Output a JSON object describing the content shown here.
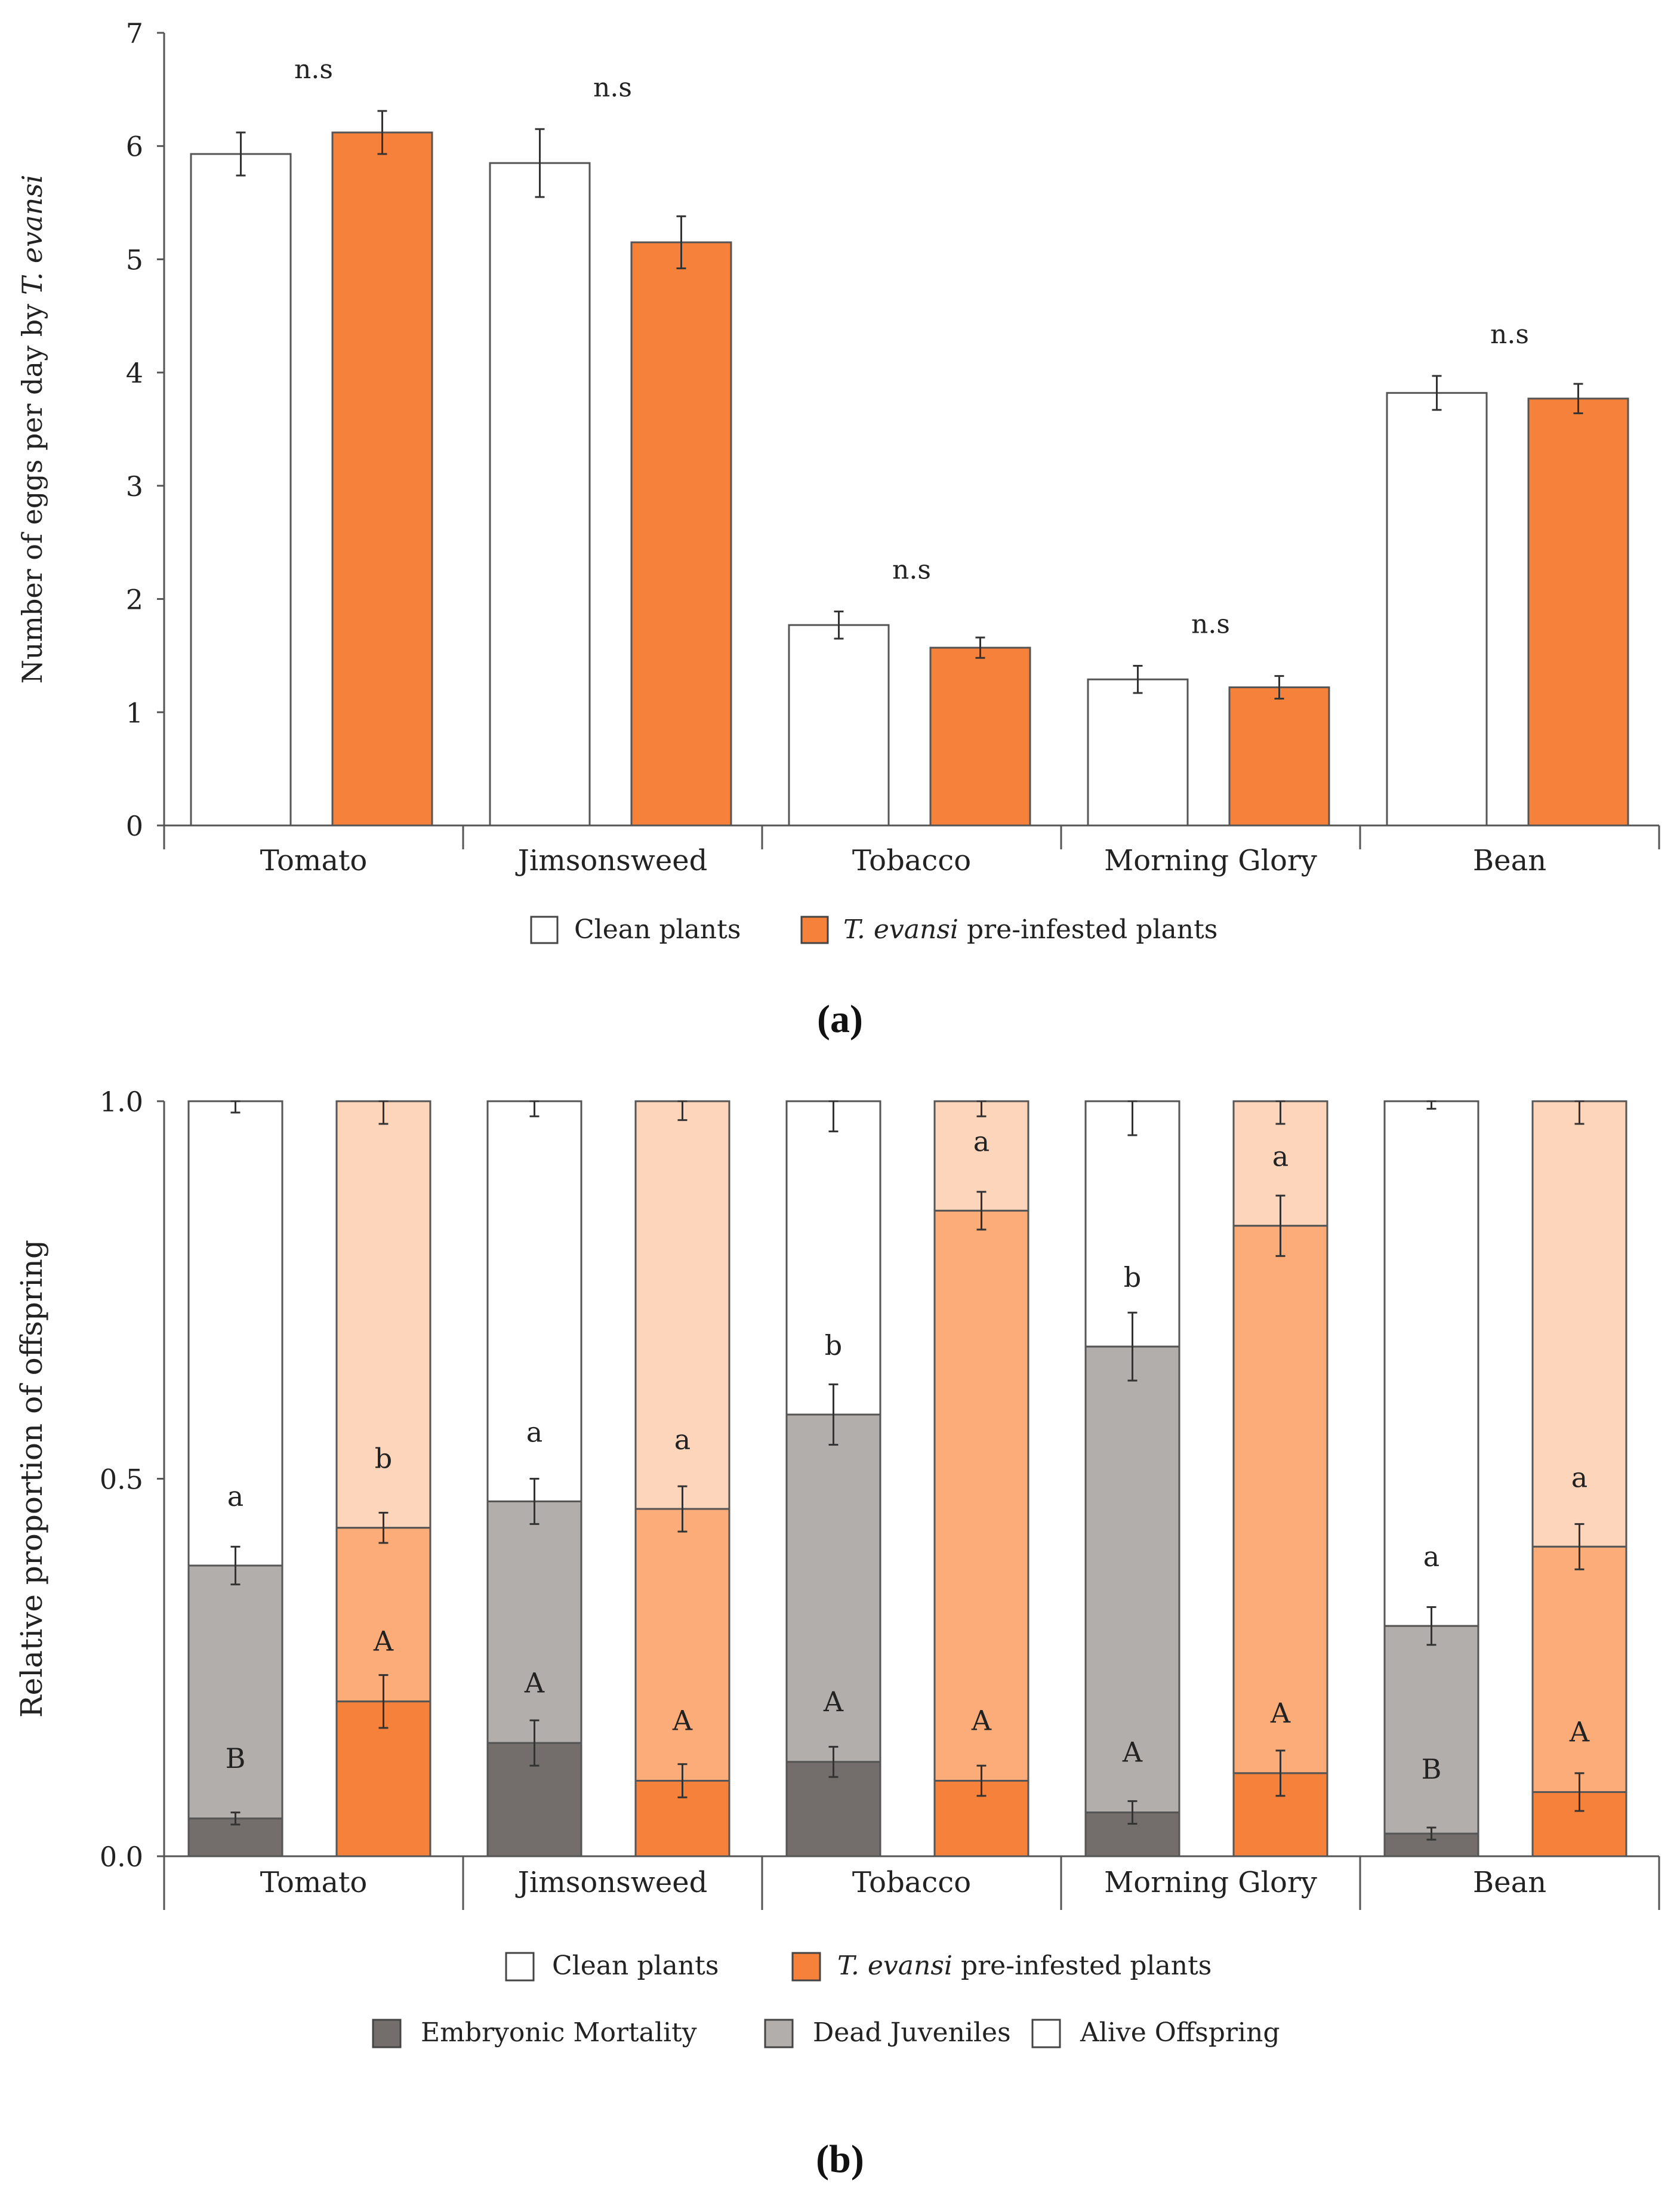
{
  "chart_data": [
    {
      "panel": "a",
      "type": "bar",
      "caption": "(a)",
      "categories": [
        "Tomato",
        "Jimsonsweed",
        "Tobacco",
        "Morning Glory",
        "Bean"
      ],
      "series": [
        {
          "name": "Clean plants",
          "color": "#ffffff",
          "values": [
            5.93,
            5.85,
            1.77,
            1.29,
            3.82
          ],
          "errors": [
            0.19,
            0.3,
            0.12,
            0.12,
            0.15
          ]
        },
        {
          "name": "T. evansi pre-infested plants",
          "color": "#f5813a",
          "values": [
            6.12,
            5.15,
            1.57,
            1.22,
            3.77
          ],
          "errors": [
            0.19,
            0.23,
            0.09,
            0.1,
            0.13
          ]
        }
      ],
      "significance": [
        "n.s",
        "n.s",
        "n.s",
        "n.s",
        "n.s"
      ],
      "ylabel_prefix": "Number of eggs per day by ",
      "ylabel_italic": "T. evansi",
      "xlabel": "",
      "ylim": [
        0,
        7
      ],
      "yticks": [
        0,
        1,
        2,
        3,
        4,
        5,
        6,
        7
      ],
      "legend": {
        "clean": "Clean plants",
        "infested_italic": "T. evansi",
        "infested_rest": " pre-infested plants"
      }
    },
    {
      "panel": "b",
      "type": "bar",
      "stacked": true,
      "caption": "(b)",
      "categories": [
        "Tomato",
        "Jimsonsweed",
        "Tobacco",
        "Morning Glory",
        "Bean"
      ],
      "ylabel": "Relative proportion of offspring",
      "ylim": [
        0,
        1
      ],
      "yticks": [
        "0.0",
        "0.5",
        "1.0"
      ],
      "segments": [
        "Embryonic Mortality",
        "Dead Juveniles",
        "Alive Offspring"
      ],
      "colors": {
        "clean": [
          "#736e6b",
          "#b1aeab",
          "#ffffff"
        ],
        "infested": [
          "#f5813a",
          "#fbac78",
          "#fdd5bb"
        ]
      },
      "series": [
        {
          "name": "Clean plants",
          "embryonic": [
            0.05,
            0.15,
            0.125,
            0.058,
            0.03
          ],
          "cumulative_dead": [
            0.385,
            0.47,
            0.585,
            0.675,
            0.305
          ],
          "err_embryonic": [
            0.008,
            0.03,
            0.02,
            0.015,
            0.008
          ],
          "err_cumulative": [
            0.025,
            0.03,
            0.04,
            0.045,
            0.025
          ],
          "err_top": [
            0.015,
            0.02,
            0.04,
            0.045,
            0.01
          ],
          "letters_upper": [
            "B",
            "A",
            "A",
            "A",
            "B"
          ],
          "letters_lower": [
            "a",
            "a",
            "b",
            "b",
            "a"
          ]
        },
        {
          "name": "T. evansi pre-infested plants",
          "embryonic": [
            0.205,
            0.1,
            0.1,
            0.11,
            0.085
          ],
          "cumulative_dead": [
            0.435,
            0.46,
            0.855,
            0.835,
            0.41
          ],
          "err_embryonic": [
            0.035,
            0.022,
            0.02,
            0.03,
            0.025
          ],
          "err_cumulative": [
            0.02,
            0.03,
            0.025,
            0.04,
            0.03
          ],
          "err_top": [
            0.03,
            0.025,
            0.02,
            0.03,
            0.03
          ],
          "letters_upper": [
            "A",
            "A",
            "A",
            "A",
            "A"
          ],
          "letters_lower": [
            "b",
            "a",
            "a",
            "a",
            "a"
          ]
        }
      ],
      "legend": {
        "clean": "Clean plants",
        "infested_italic": "T. evansi",
        "infested_rest": " pre-infested plants",
        "embryonic": "Embryonic Mortality",
        "dead": "Dead Juveniles",
        "alive": "Alive Offspring"
      }
    }
  ]
}
